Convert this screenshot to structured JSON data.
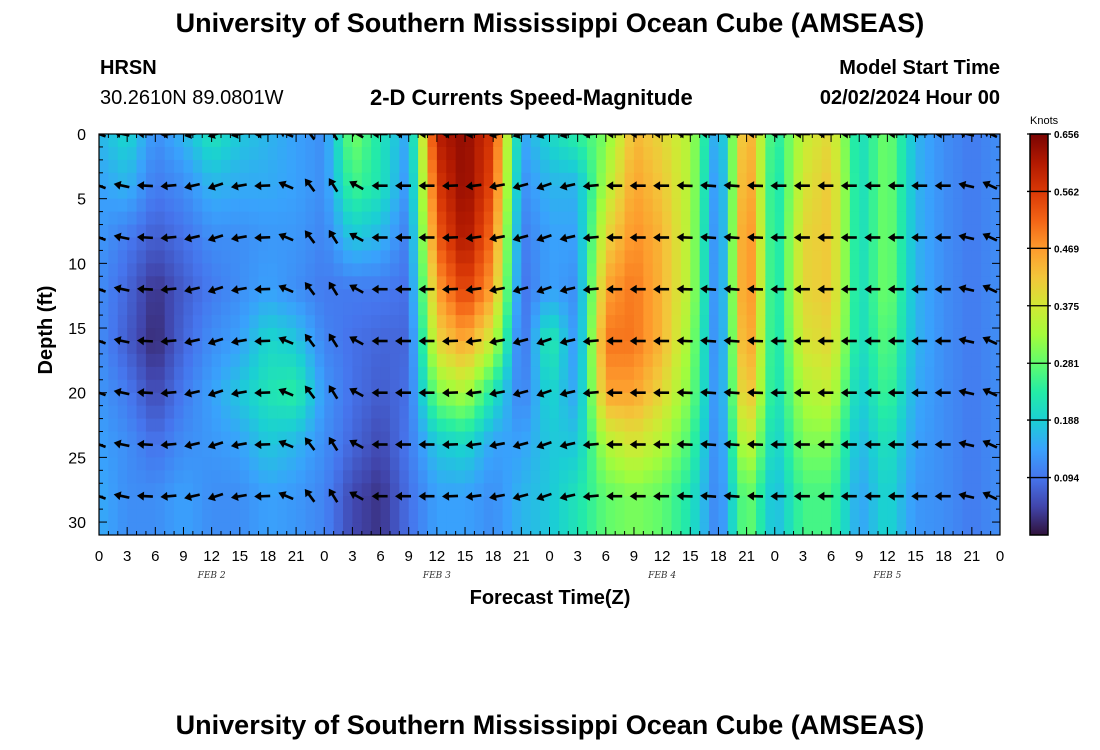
{
  "page": {
    "title_top": "University of Southern Mississippi Ocean Cube (AMSEAS)",
    "title_bottom": "University of Southern Mississippi Ocean Cube (AMSEAS)",
    "station": "HRSN",
    "coords": "30.2610N  89.0801W",
    "plot_title": "2-D Currents Speed-Magnitude",
    "model_start_label": "Model Start Time",
    "model_start_value": "02/02/2024 Hour 00"
  },
  "chart_data": {
    "type": "heatmap",
    "title": "2-D Currents Speed-Magnitude",
    "xlabel": "Forecast Time(Z)",
    "ylabel": "Depth (ft)",
    "ylim": [
      0,
      31
    ],
    "xlim_hours": [
      0,
      96
    ],
    "x_tick_labels": [
      "0",
      "3",
      "6",
      "9",
      "12",
      "15",
      "18",
      "21",
      "0",
      "3",
      "6",
      "9",
      "12",
      "15",
      "18",
      "21",
      "0",
      "3",
      "6",
      "9",
      "12",
      "15",
      "18",
      "21",
      "0",
      "3",
      "6",
      "9",
      "12",
      "15",
      "18",
      "21",
      "0"
    ],
    "y_tick_labels": [
      "0",
      "5",
      "10",
      "15",
      "20",
      "25",
      "30"
    ],
    "y_tick_values": [
      0,
      5,
      10,
      15,
      20,
      25,
      30
    ],
    "date_labels": [
      {
        "label": "FEB 2",
        "hour": 12
      },
      {
        "label": "FEB 3",
        "hour": 36
      },
      {
        "label": "FEB 4",
        "hour": 60
      },
      {
        "label": "FEB 5",
        "hour": 84
      }
    ],
    "colorbar": {
      "unit": "Knots",
      "min": 0.0,
      "max": 0.656,
      "tick_labels": [
        "0.656",
        "0.562",
        "0.469",
        "0.375",
        "0.281",
        "0.188",
        "0.094"
      ],
      "tick_values": [
        0.656,
        0.562,
        0.469,
        0.375,
        0.281,
        0.188,
        0.094
      ],
      "colors": [
        "#30123b",
        "#4145ab",
        "#4675ed",
        "#39a2fc",
        "#1bcfd4",
        "#24eca6",
        "#61fc6c",
        "#a4fc3b",
        "#d1e834",
        "#f3c63a",
        "#fe9b2d",
        "#f36315",
        "#d93806",
        "#b11901",
        "#7a0403"
      ]
    },
    "arrow_depths_ft": [
      0,
      4,
      8,
      12,
      16,
      20,
      24,
      28
    ],
    "arrow_hours": [
      0,
      2.5,
      5,
      7.5,
      10,
      12.5,
      15,
      17.5,
      20,
      22.5,
      25,
      27.5,
      30,
      32.5,
      35,
      37.5,
      40,
      42.5,
      45,
      47.5,
      50,
      52.5,
      55,
      57.5,
      60,
      62.5,
      65,
      67.5,
      70,
      72.5,
      75,
      77.5,
      80,
      82.5,
      85,
      87.5,
      90,
      92.5,
      95
    ],
    "speed_profile_by_hour": [
      {
        "hour": 0,
        "speeds": [
          0.16,
          0.14,
          0.13,
          0.12,
          0.12,
          0.13,
          0.14,
          0.15
        ]
      },
      {
        "hour": 3,
        "speeds": [
          0.2,
          0.16,
          0.1,
          0.08,
          0.07,
          0.1,
          0.12,
          0.12
        ]
      },
      {
        "hour": 6,
        "speeds": [
          0.12,
          0.1,
          0.07,
          0.03,
          0.02,
          0.05,
          0.09,
          0.12
        ]
      },
      {
        "hour": 9,
        "speeds": [
          0.16,
          0.12,
          0.09,
          0.07,
          0.08,
          0.1,
          0.12,
          0.14
        ]
      },
      {
        "hour": 12,
        "speeds": [
          0.22,
          0.16,
          0.12,
          0.1,
          0.12,
          0.14,
          0.13,
          0.12
        ]
      },
      {
        "hour": 15,
        "speeds": [
          0.18,
          0.15,
          0.12,
          0.12,
          0.14,
          0.18,
          0.14,
          0.12
        ]
      },
      {
        "hour": 18,
        "speeds": [
          0.16,
          0.15,
          0.13,
          0.14,
          0.2,
          0.22,
          0.18,
          0.14
        ]
      },
      {
        "hour": 21,
        "speeds": [
          0.14,
          0.14,
          0.13,
          0.12,
          0.18,
          0.24,
          0.16,
          0.13
        ]
      },
      {
        "hour": 24,
        "speeds": [
          0.12,
          0.12,
          0.11,
          0.1,
          0.11,
          0.13,
          0.12,
          0.11
        ]
      },
      {
        "hour": 27,
        "speeds": [
          0.3,
          0.26,
          0.18,
          0.1,
          0.09,
          0.09,
          0.08,
          0.05
        ]
      },
      {
        "hour": 30,
        "speeds": [
          0.22,
          0.22,
          0.16,
          0.1,
          0.08,
          0.07,
          0.05,
          0.03
        ]
      },
      {
        "hour": 33,
        "speeds": [
          0.14,
          0.12,
          0.1,
          0.09,
          0.08,
          0.09,
          0.1,
          0.09
        ]
      },
      {
        "hour": 36,
        "speeds": [
          0.6,
          0.56,
          0.52,
          0.46,
          0.4,
          0.3,
          0.18,
          0.14
        ]
      },
      {
        "hour": 39,
        "speeds": [
          0.64,
          0.64,
          0.62,
          0.56,
          0.46,
          0.34,
          0.2,
          0.14
        ]
      },
      {
        "hour": 42,
        "speeds": [
          0.56,
          0.54,
          0.5,
          0.46,
          0.36,
          0.22,
          0.14,
          0.12
        ]
      },
      {
        "hour": 45,
        "speeds": [
          0.14,
          0.12,
          0.1,
          0.09,
          0.08,
          0.1,
          0.14,
          0.16
        ]
      },
      {
        "hour": 48,
        "speeds": [
          0.2,
          0.16,
          0.14,
          0.14,
          0.24,
          0.2,
          0.18,
          0.18
        ]
      },
      {
        "hour": 51,
        "speeds": [
          0.24,
          0.16,
          0.14,
          0.12,
          0.12,
          0.14,
          0.18,
          0.22
        ]
      },
      {
        "hour": 54,
        "speeds": [
          0.3,
          0.34,
          0.4,
          0.46,
          0.5,
          0.46,
          0.34,
          0.28
        ]
      },
      {
        "hour": 57,
        "speeds": [
          0.44,
          0.46,
          0.48,
          0.5,
          0.5,
          0.46,
          0.38,
          0.3
        ]
      },
      {
        "hour": 60,
        "speeds": [
          0.4,
          0.42,
          0.44,
          0.44,
          0.44,
          0.4,
          0.34,
          0.28
        ]
      },
      {
        "hour": 63,
        "speeds": [
          0.34,
          0.34,
          0.34,
          0.34,
          0.32,
          0.3,
          0.26,
          0.22
        ]
      },
      {
        "hour": 66,
        "speeds": [
          0.12,
          0.1,
          0.09,
          0.09,
          0.09,
          0.1,
          0.1,
          0.1
        ]
      },
      {
        "hour": 69,
        "speeds": [
          0.48,
          0.5,
          0.52,
          0.52,
          0.5,
          0.46,
          0.38,
          0.3
        ]
      },
      {
        "hour": 72,
        "speeds": [
          0.22,
          0.2,
          0.2,
          0.2,
          0.2,
          0.2,
          0.18,
          0.16
        ]
      },
      {
        "hour": 75,
        "speeds": [
          0.36,
          0.38,
          0.4,
          0.4,
          0.38,
          0.34,
          0.3,
          0.26
        ]
      },
      {
        "hour": 78,
        "speeds": [
          0.4,
          0.42,
          0.42,
          0.42,
          0.4,
          0.36,
          0.3,
          0.26
        ]
      },
      {
        "hour": 81,
        "speeds": [
          0.2,
          0.2,
          0.2,
          0.2,
          0.2,
          0.18,
          0.16,
          0.14
        ]
      },
      {
        "hour": 84,
        "speeds": [
          0.3,
          0.3,
          0.3,
          0.3,
          0.28,
          0.26,
          0.22,
          0.2
        ]
      },
      {
        "hour": 87,
        "speeds": [
          0.16,
          0.16,
          0.16,
          0.16,
          0.16,
          0.15,
          0.14,
          0.13
        ]
      },
      {
        "hour": 90,
        "speeds": [
          0.12,
          0.12,
          0.12,
          0.12,
          0.12,
          0.12,
          0.12,
          0.12
        ]
      },
      {
        "hour": 93,
        "speeds": [
          0.1,
          0.1,
          0.1,
          0.1,
          0.1,
          0.1,
          0.1,
          0.1
        ]
      },
      {
        "hour": 96,
        "speeds": [
          0.12,
          0.12,
          0.12,
          0.12,
          0.12,
          0.12,
          0.12,
          0.12
        ]
      }
    ],
    "direction_by_hour_deg": [
      {
        "hour": 0,
        "dir": 200
      },
      {
        "hour": 6,
        "dir": 180
      },
      {
        "hour": 12,
        "dir": 160
      },
      {
        "hour": 18,
        "dir": 180
      },
      {
        "hour": 24,
        "dir": 250
      },
      {
        "hour": 30,
        "dir": 180
      },
      {
        "hour": 36,
        "dir": 180
      },
      {
        "hour": 42,
        "dir": 170
      },
      {
        "hour": 48,
        "dir": 160
      },
      {
        "hour": 54,
        "dir": 180
      },
      {
        "hour": 60,
        "dir": 180
      },
      {
        "hour": 66,
        "dir": 185
      },
      {
        "hour": 72,
        "dir": 180
      },
      {
        "hour": 78,
        "dir": 180
      },
      {
        "hour": 84,
        "dir": 180
      },
      {
        "hour": 90,
        "dir": 180
      },
      {
        "hour": 96,
        "dir": 210
      }
    ]
  }
}
